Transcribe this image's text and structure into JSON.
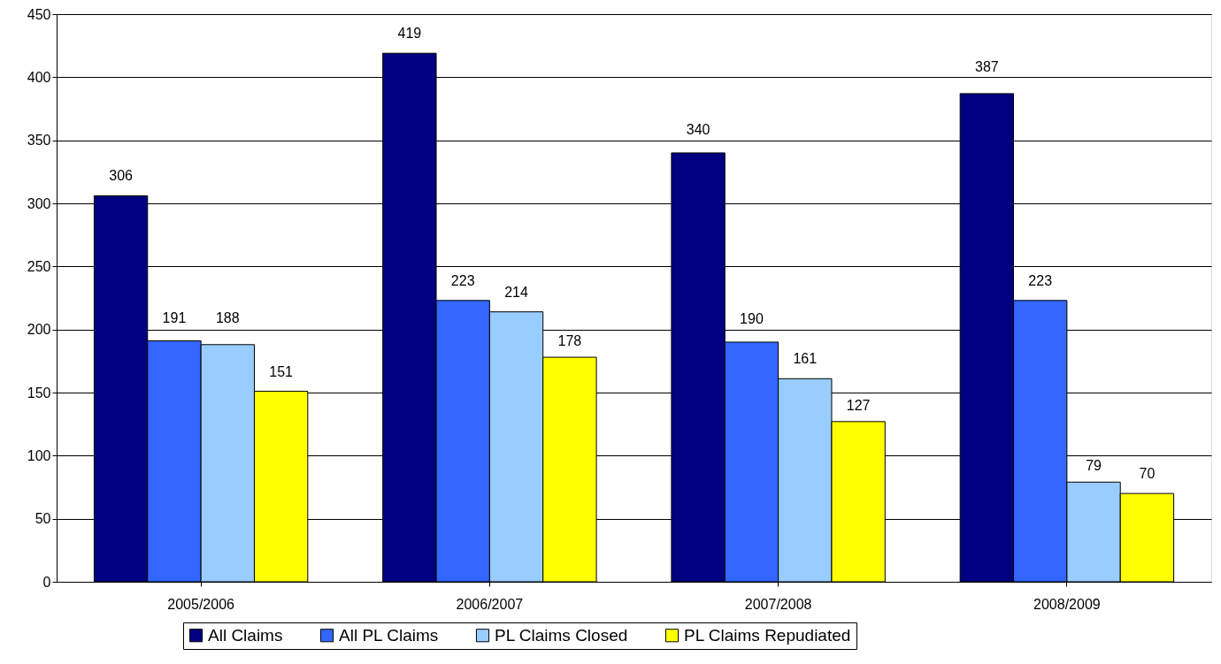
{
  "chart_data": {
    "type": "bar",
    "categories": [
      "2005/2006",
      "2006/2007",
      "2007/2008",
      "2008/2009"
    ],
    "series": [
      {
        "name": "All Claims",
        "color": "#000080",
        "values": [
          306,
          419,
          340,
          387
        ]
      },
      {
        "name": "All PL Claims",
        "color": "#3366ff",
        "values": [
          191,
          223,
          190,
          223
        ]
      },
      {
        "name": "PL Claims Closed",
        "color": "#99ccff",
        "values": [
          188,
          214,
          161,
          79
        ]
      },
      {
        "name": "PL Claims Repudiated",
        "color": "#ffff00",
        "values": [
          151,
          178,
          127,
          70
        ]
      }
    ],
    "ylim": [
      0,
      450
    ],
    "yticks": [
      0,
      50,
      100,
      150,
      200,
      250,
      300,
      350,
      400,
      450
    ],
    "grid": "y",
    "legend": "bottom",
    "data_labels": true
  }
}
